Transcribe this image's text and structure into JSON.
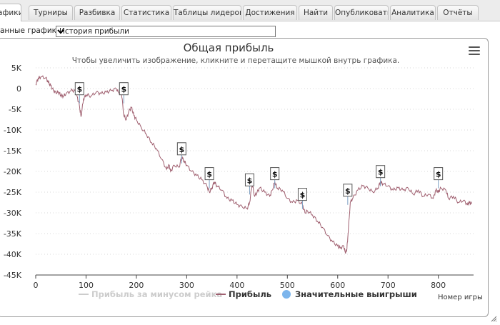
{
  "tabs": [
    {
      "label": "афики",
      "active": true
    },
    {
      "label": "Турниры"
    },
    {
      "label": "Разбивка"
    },
    {
      "label": "Статистика"
    },
    {
      "label": "Таблицы лидеров"
    },
    {
      "label": "Достижения"
    },
    {
      "label": "Найти"
    },
    {
      "label": "Опубликовать"
    },
    {
      "label": "Аналитика"
    },
    {
      "label": "Отчёты"
    }
  ],
  "selector": {
    "label": "анные графики:",
    "value": "История прибыли"
  },
  "chart_data": {
    "type": "line",
    "title": "Общая прибыль",
    "subtitle": "Чтобы увеличить изображение, кликните и перетащите мышкой внутрь графика.",
    "xlabel": "Номер игры",
    "xlim": [
      0,
      870
    ],
    "ylim": [
      -45000,
      5000
    ],
    "x_ticks": [
      0,
      100,
      200,
      300,
      400,
      500,
      600,
      700,
      800
    ],
    "y_ticks": [
      5000,
      0,
      -5000,
      -10000,
      -15000,
      -20000,
      -25000,
      -30000,
      -35000,
      -40000,
      -45000
    ],
    "y_tick_labels": [
      "5K",
      "0",
      "-5K",
      "-10K",
      "-15K",
      "-20K",
      "-25K",
      "-30K",
      "-35K",
      "-40K",
      "-45K"
    ],
    "grid": "horizontal dotted",
    "legend_position": "bottom",
    "series": [
      {
        "name": "Прибыль за минусом рейка",
        "color": "#cccccc",
        "hidden": true,
        "points": []
      },
      {
        "name": "Прибыль",
        "color": "#a06070",
        "points": [
          [
            0,
            1000
          ],
          [
            5,
            2500
          ],
          [
            10,
            2800
          ],
          [
            20,
            2600
          ],
          [
            25,
            1500
          ],
          [
            30,
            700
          ],
          [
            35,
            -500
          ],
          [
            40,
            -1000
          ],
          [
            45,
            -800
          ],
          [
            50,
            -1600
          ],
          [
            55,
            -1800
          ],
          [
            60,
            -1300
          ],
          [
            70,
            -500
          ],
          [
            78,
            -500
          ],
          [
            82,
            -1800
          ],
          [
            87,
            -4200
          ],
          [
            90,
            -6800
          ],
          [
            95,
            -2500
          ],
          [
            100,
            -1500
          ],
          [
            110,
            -1800
          ],
          [
            120,
            -900
          ],
          [
            130,
            -1200
          ],
          [
            140,
            -900
          ],
          [
            150,
            -500
          ],
          [
            160,
            0
          ],
          [
            165,
            -1000
          ],
          [
            170,
            -500
          ],
          [
            175,
            -6500
          ],
          [
            180,
            -7500
          ],
          [
            185,
            -5500
          ],
          [
            190,
            -4500
          ],
          [
            195,
            -6500
          ],
          [
            200,
            -7500
          ],
          [
            210,
            -9500
          ],
          [
            220,
            -11000
          ],
          [
            230,
            -13000
          ],
          [
            240,
            -14500
          ],
          [
            250,
            -17000
          ],
          [
            260,
            -19500
          ],
          [
            265,
            -18500
          ],
          [
            268,
            -20000
          ],
          [
            275,
            -18500
          ],
          [
            285,
            -19000
          ],
          [
            290,
            -16500
          ],
          [
            295,
            -17500
          ],
          [
            300,
            -18500
          ],
          [
            310,
            -20000
          ],
          [
            320,
            -21000
          ],
          [
            330,
            -22000
          ],
          [
            340,
            -23500
          ],
          [
            345,
            -25000
          ],
          [
            350,
            -24000
          ],
          [
            355,
            -22500
          ],
          [
            360,
            -23500
          ],
          [
            370,
            -24500
          ],
          [
            380,
            -26500
          ],
          [
            390,
            -27000
          ],
          [
            400,
            -28000
          ],
          [
            410,
            -28500
          ],
          [
            420,
            -29000
          ],
          [
            425,
            -27500
          ],
          [
            430,
            -23000
          ],
          [
            435,
            -26000
          ],
          [
            440,
            -25000
          ],
          [
            445,
            -24000
          ],
          [
            455,
            -25000
          ],
          [
            465,
            -26000
          ],
          [
            470,
            -24500
          ],
          [
            475,
            -22500
          ],
          [
            480,
            -24000
          ],
          [
            490,
            -24500
          ],
          [
            500,
            -26500
          ],
          [
            510,
            -27500
          ],
          [
            520,
            -27000
          ],
          [
            530,
            -28000
          ],
          [
            535,
            -30000
          ],
          [
            540,
            -29500
          ],
          [
            550,
            -30500
          ],
          [
            560,
            -32000
          ],
          [
            570,
            -33500
          ],
          [
            580,
            -35500
          ],
          [
            590,
            -37000
          ],
          [
            600,
            -38000
          ],
          [
            605,
            -38500
          ],
          [
            612,
            -38000
          ],
          [
            615,
            -39500
          ],
          [
            618,
            -39000
          ],
          [
            620,
            -36000
          ],
          [
            625,
            -27500
          ],
          [
            630,
            -26500
          ],
          [
            640,
            -24500
          ],
          [
            650,
            -23500
          ],
          [
            660,
            -24000
          ],
          [
            670,
            -25000
          ],
          [
            680,
            -24000
          ],
          [
            685,
            -22500
          ],
          [
            690,
            -23000
          ],
          [
            700,
            -23500
          ],
          [
            710,
            -24500
          ],
          [
            720,
            -24000
          ],
          [
            730,
            -24500
          ],
          [
            740,
            -24000
          ],
          [
            750,
            -25500
          ],
          [
            760,
            -24500
          ],
          [
            770,
            -26000
          ],
          [
            780,
            -25500
          ],
          [
            790,
            -26500
          ],
          [
            795,
            -24500
          ],
          [
            800,
            -25000
          ],
          [
            805,
            -24000
          ],
          [
            815,
            -24500
          ],
          [
            820,
            -26500
          ],
          [
            830,
            -26000
          ],
          [
            840,
            -27500
          ],
          [
            850,
            -27000
          ],
          [
            858,
            -28000
          ],
          [
            862,
            -27500
          ],
          [
            866,
            -27800
          ]
        ]
      },
      {
        "name": "Значительные выигрыши",
        "color": "#7cb5ec",
        "type": "flag",
        "flag_text": "$",
        "points": [
          [
            87,
            -1500
          ],
          [
            175,
            -1500
          ],
          [
            290,
            -16000
          ],
          [
            345,
            -22000
          ],
          [
            425,
            -23500
          ],
          [
            475,
            -22000
          ],
          [
            530,
            -27000
          ],
          [
            620,
            -26000
          ],
          [
            685,
            -21500
          ],
          [
            800,
            -22000
          ]
        ]
      }
    ]
  }
}
